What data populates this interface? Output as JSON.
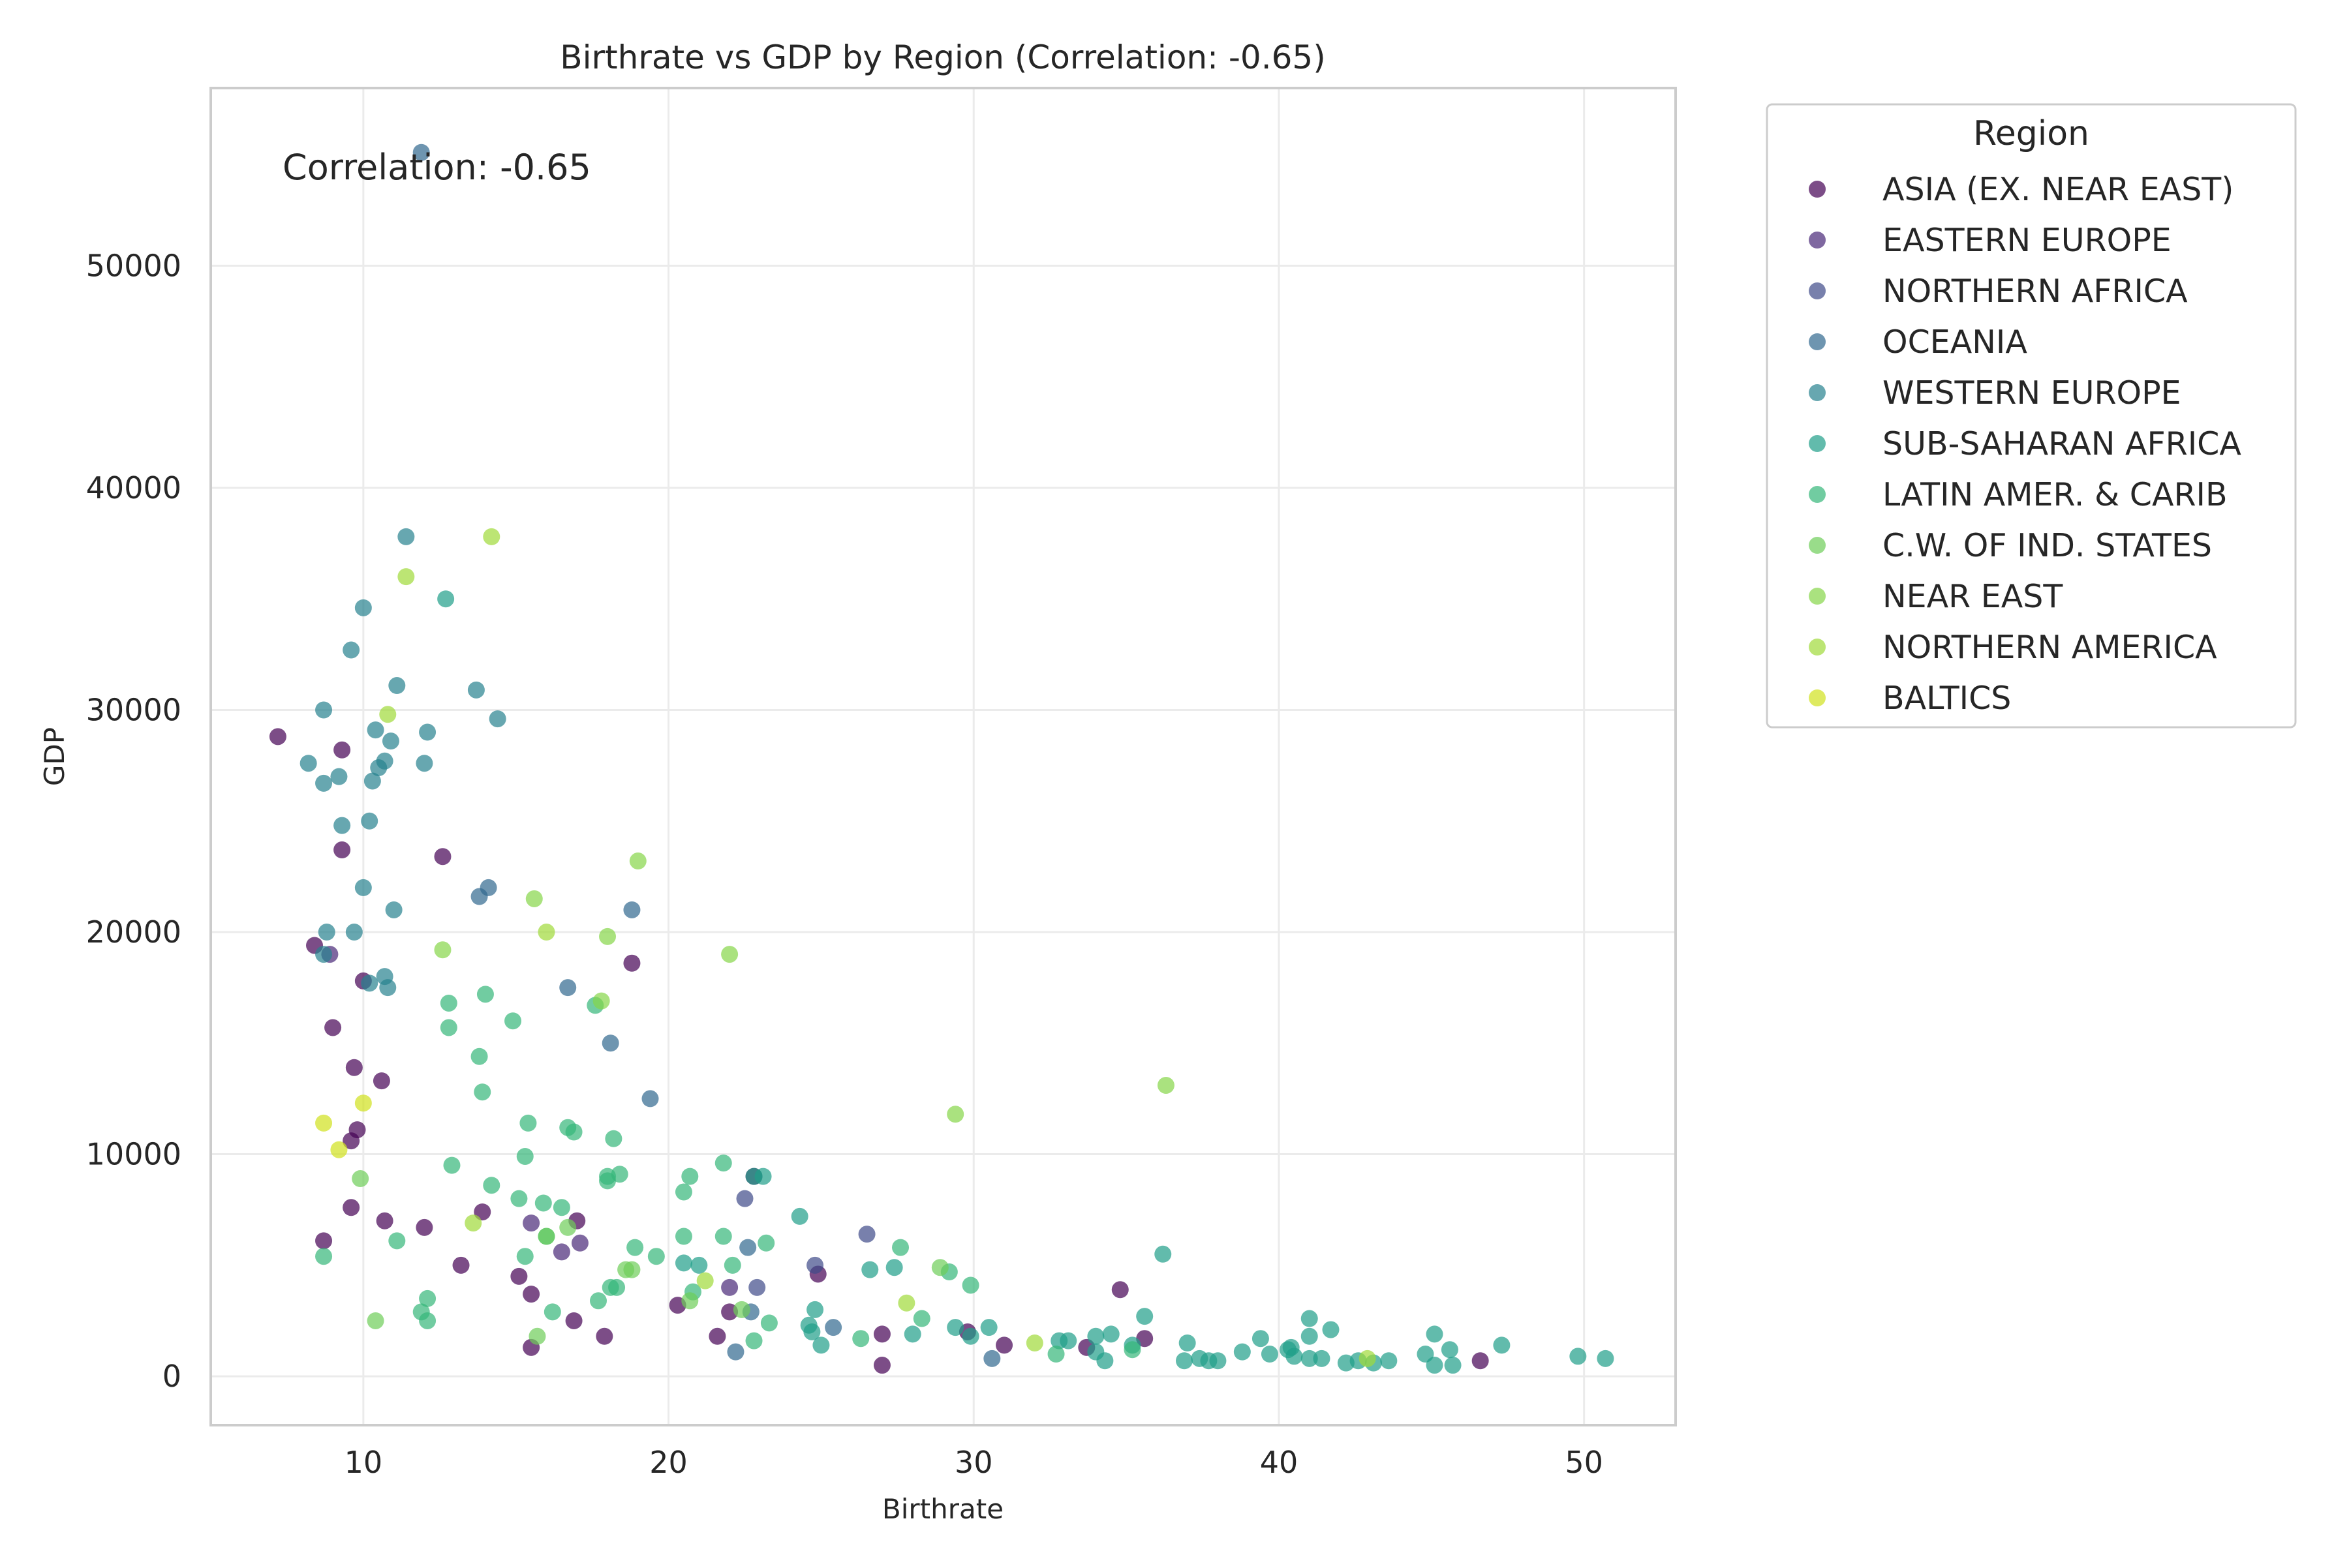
{
  "chart_data": {
    "type": "scatter",
    "title": "Birthrate vs GDP by Region (Correlation: -0.65)",
    "xlabel": "Birthrate",
    "ylabel": "GDP",
    "annotation": "Correlation: -0.65",
    "xlim": [
      5,
      53
    ],
    "ylim": [
      -2200,
      58000
    ],
    "xticks": [
      "10",
      "20",
      "30",
      "40",
      "50"
    ],
    "yticks": [
      "0",
      "10000",
      "20000",
      "30000",
      "40000",
      "50000"
    ],
    "grid": true,
    "legend": {
      "title": "Region",
      "placement": "outside-right"
    },
    "series": [
      {
        "name": "ASIA (EX. NEAR EAST)",
        "color": "#440154",
        "points": [
          [
            7.2,
            28800
          ],
          [
            9.3,
            28200
          ],
          [
            9.3,
            23700
          ],
          [
            8.4,
            19400
          ],
          [
            10.0,
            17800
          ],
          [
            9.0,
            15700
          ],
          [
            9.7,
            13900
          ],
          [
            10.6,
            13300
          ],
          [
            9.8,
            11100
          ],
          [
            9.6,
            10600
          ],
          [
            9.6,
            7600
          ],
          [
            10.7,
            7000
          ],
          [
            12.0,
            6700
          ],
          [
            8.7,
            6100
          ],
          [
            12.6,
            23400
          ],
          [
            13.9,
            7400
          ],
          [
            13.2,
            5000
          ],
          [
            15.1,
            4500
          ],
          [
            15.5,
            3700
          ],
          [
            15.5,
            1300
          ],
          [
            16.9,
            2500
          ],
          [
            17.0,
            7000
          ],
          [
            17.9,
            1800
          ],
          [
            18.8,
            18600
          ],
          [
            20.3,
            3200
          ],
          [
            21.6,
            1800
          ],
          [
            22.0,
            2900
          ],
          [
            22.8,
            9000
          ],
          [
            24.9,
            4600
          ],
          [
            27.0,
            1900
          ],
          [
            27.0,
            500
          ],
          [
            29.8,
            2000
          ],
          [
            31.0,
            1400
          ],
          [
            33.7,
            1300
          ],
          [
            34.8,
            3900
          ],
          [
            35.6,
            1700
          ],
          [
            46.6,
            700
          ]
        ]
      },
      {
        "name": "EASTERN EUROPE",
        "color": "#482878",
        "points": [
          [
            8.9,
            19000
          ],
          [
            15.5,
            6900
          ],
          [
            16.5,
            5600
          ],
          [
            17.1,
            6000
          ],
          [
            22.0,
            4000
          ]
        ]
      },
      {
        "name": "NORTHERN AFRICA",
        "color": "#3E4A89",
        "points": [
          [
            22.5,
            8000
          ],
          [
            22.9,
            4000
          ],
          [
            24.8,
            5000
          ],
          [
            26.5,
            6400
          ]
        ]
      },
      {
        "name": "OCEANIA",
        "color": "#31688E",
        "points": [
          [
            11.9,
            55100
          ],
          [
            13.8,
            21600
          ],
          [
            14.1,
            22000
          ],
          [
            16.7,
            17500
          ],
          [
            18.1,
            15000
          ],
          [
            18.8,
            21000
          ],
          [
            19.4,
            12500
          ],
          [
            22.6,
            5800
          ],
          [
            22.7,
            2900
          ],
          [
            22.2,
            1100
          ],
          [
            25.4,
            2200
          ],
          [
            30.6,
            800
          ]
        ]
      },
      {
        "name": "WESTERN EUROPE",
        "color": "#26828E",
        "points": [
          [
            8.2,
            27600
          ],
          [
            8.7,
            30000
          ],
          [
            8.7,
            26700
          ],
          [
            9.2,
            27000
          ],
          [
            9.3,
            24800
          ],
          [
            9.6,
            32700
          ],
          [
            10.0,
            34600
          ],
          [
            10.2,
            25000
          ],
          [
            10.3,
            26800
          ],
          [
            10.4,
            29100
          ],
          [
            10.5,
            27400
          ],
          [
            10.7,
            27700
          ],
          [
            10.9,
            28600
          ],
          [
            11.1,
            31100
          ],
          [
            11.4,
            37800
          ],
          [
            12.0,
            27600
          ],
          [
            12.1,
            29000
          ],
          [
            13.7,
            30900
          ],
          [
            14.4,
            29600
          ],
          [
            11.0,
            21000
          ],
          [
            10.0,
            22000
          ],
          [
            8.8,
            20000
          ],
          [
            9.7,
            20000
          ],
          [
            8.7,
            19000
          ],
          [
            10.2,
            17700
          ],
          [
            10.7,
            18000
          ],
          [
            10.8,
            17500
          ]
        ]
      },
      {
        "name": "SUB-SAHARAN AFRICA",
        "color": "#1F9E89",
        "points": [
          [
            12.7,
            35000
          ],
          [
            23.1,
            9000
          ],
          [
            24.3,
            7200
          ],
          [
            36.2,
            5500
          ],
          [
            35.6,
            2700
          ],
          [
            37.0,
            1500
          ],
          [
            37.7,
            700
          ],
          [
            38.8,
            1100
          ],
          [
            39.4,
            1700
          ],
          [
            39.7,
            1000
          ],
          [
            40.3,
            1200
          ],
          [
            40.5,
            900
          ],
          [
            41.0,
            2600
          ],
          [
            41.0,
            800
          ],
          [
            41.4,
            800
          ],
          [
            41.7,
            2100
          ],
          [
            42.2,
            600
          ],
          [
            42.6,
            700
          ],
          [
            43.1,
            600
          ],
          [
            43.6,
            700
          ],
          [
            44.8,
            1000
          ],
          [
            45.1,
            1900
          ],
          [
            45.1,
            500
          ],
          [
            45.6,
            1200
          ],
          [
            45.7,
            500
          ],
          [
            47.3,
            1400
          ],
          [
            49.8,
            900
          ],
          [
            50.7,
            800
          ],
          [
            34.0,
            1800
          ],
          [
            34.5,
            1900
          ],
          [
            35.2,
            1400
          ],
          [
            32.8,
            1600
          ],
          [
            33.1,
            1600
          ],
          [
            34.3,
            700
          ],
          [
            30.5,
            2200
          ],
          [
            29.4,
            2200
          ],
          [
            25.0,
            1400
          ],
          [
            24.8,
            3000
          ],
          [
            28.0,
            1900
          ],
          [
            27.4,
            4900
          ],
          [
            26.6,
            4800
          ],
          [
            22.8,
            9000
          ],
          [
            21.0,
            5000
          ],
          [
            20.5,
            5100
          ],
          [
            24.6,
            2300
          ],
          [
            34.0,
            1100
          ],
          [
            36.9,
            700
          ],
          [
            37.4,
            800
          ],
          [
            38.0,
            700
          ],
          [
            40.4,
            1300
          ],
          [
            41.0,
            1800
          ],
          [
            29.9,
            1800
          ],
          [
            24.7,
            2000
          ]
        ]
      },
      {
        "name": "LATIN AMER. & CARIB",
        "color": "#35B779",
        "points": [
          [
            8.7,
            5400
          ],
          [
            11.1,
            6100
          ],
          [
            11.9,
            2900
          ],
          [
            12.1,
            2500
          ],
          [
            12.1,
            3500
          ],
          [
            12.8,
            15700
          ],
          [
            12.8,
            16800
          ],
          [
            12.9,
            9500
          ],
          [
            13.8,
            14400
          ],
          [
            13.9,
            12800
          ],
          [
            14.0,
            17200
          ],
          [
            14.2,
            8600
          ],
          [
            14.9,
            16000
          ],
          [
            15.1,
            8000
          ],
          [
            15.3,
            9900
          ],
          [
            15.3,
            5400
          ],
          [
            15.4,
            11400
          ],
          [
            15.9,
            7800
          ],
          [
            16.0,
            6300
          ],
          [
            16.2,
            2900
          ],
          [
            16.5,
            7600
          ],
          [
            16.7,
            11200
          ],
          [
            16.9,
            11000
          ],
          [
            17.6,
            16700
          ],
          [
            17.7,
            3400
          ],
          [
            18.0,
            8800
          ],
          [
            18.0,
            9000
          ],
          [
            18.1,
            4000
          ],
          [
            18.2,
            10700
          ],
          [
            18.3,
            4000
          ],
          [
            18.4,
            9100
          ],
          [
            18.9,
            5800
          ],
          [
            19.6,
            5400
          ],
          [
            20.5,
            8300
          ],
          [
            20.5,
            6300
          ],
          [
            20.7,
            9000
          ],
          [
            20.8,
            3800
          ],
          [
            21.8,
            9600
          ],
          [
            21.8,
            6300
          ],
          [
            22.1,
            5000
          ],
          [
            22.8,
            1600
          ],
          [
            23.2,
            6000
          ],
          [
            23.3,
            2400
          ],
          [
            26.3,
            1700
          ],
          [
            27.6,
            5800
          ],
          [
            28.3,
            2600
          ],
          [
            29.2,
            4700
          ],
          [
            29.9,
            4100
          ],
          [
            32.7,
            1000
          ],
          [
            35.2,
            1200
          ]
        ]
      },
      {
        "name": "C.W. OF IND. STATES",
        "color": "#6DCD59",
        "points": [
          [
            9.9,
            8900
          ],
          [
            10.4,
            2500
          ],
          [
            15.7,
            1800
          ],
          [
            16.0,
            6300
          ],
          [
            16.7,
            6700
          ],
          [
            18.6,
            4800
          ],
          [
            18.8,
            4800
          ],
          [
            20.7,
            3400
          ],
          [
            22.4,
            3000
          ],
          [
            28.9,
            4900
          ]
        ]
      },
      {
        "name": "NEAR EAST",
        "color": "#86D549",
        "points": [
          [
            12.6,
            19200
          ],
          [
            15.6,
            21500
          ],
          [
            17.8,
            16900
          ],
          [
            18.0,
            19800
          ],
          [
            19.0,
            23200
          ],
          [
            22.0,
            19000
          ],
          [
            29.4,
            11800
          ],
          [
            36.3,
            13100
          ]
        ]
      },
      {
        "name": "NORTHERN AMERICA",
        "color": "#A0DA39",
        "points": [
          [
            11.4,
            36000
          ],
          [
            14.2,
            37800
          ],
          [
            16.0,
            20000
          ],
          [
            10.8,
            29800
          ],
          [
            13.6,
            6900
          ],
          [
            21.2,
            4300
          ],
          [
            27.8,
            3300
          ],
          [
            32.0,
            1500
          ],
          [
            42.9,
            800
          ]
        ]
      },
      {
        "name": "BALTICS",
        "color": "#D0E11C",
        "points": [
          [
            8.7,
            11400
          ],
          [
            9.2,
            10200
          ],
          [
            10.0,
            12300
          ]
        ]
      }
    ]
  }
}
